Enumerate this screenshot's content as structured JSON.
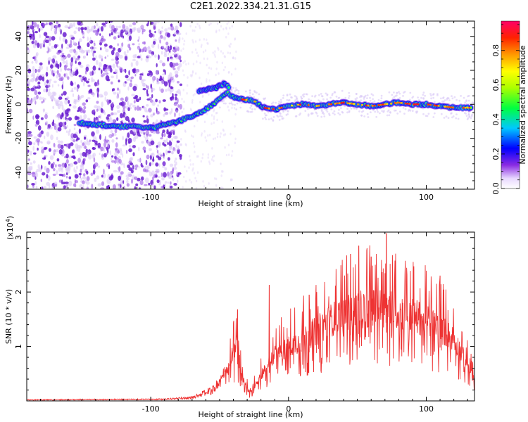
{
  "title": "C2E1.2022.334.21.31.G15",
  "chart_data": [
    {
      "type": "heatmap",
      "xlabel": "Height of straight line (km)",
      "ylabel": "Frequency (Hz)",
      "xlim": [
        -190,
        135
      ],
      "ylim": [
        -50,
        49
      ],
      "xticks": [
        -100,
        0,
        100
      ],
      "yticks": [
        -40,
        -20,
        0,
        20,
        40
      ],
      "colorbar": {
        "label": "Normalized spectral amplitude",
        "range": [
          0,
          0.97
        ],
        "ticks": [
          "0.0",
          "0.2",
          "0.4",
          "0.6",
          "0.8"
        ],
        "tick_values": [
          0,
          0.2,
          0.4,
          0.6,
          0.8
        ]
      },
      "ridge": [
        {
          "x": -152,
          "y": -11
        },
        {
          "x": -140,
          "y": -12
        },
        {
          "x": -125,
          "y": -13
        },
        {
          "x": -110,
          "y": -13
        },
        {
          "x": -98,
          "y": -14
        },
        {
          "x": -90,
          "y": -12
        },
        {
          "x": -80,
          "y": -10
        },
        {
          "x": -70,
          "y": -7
        },
        {
          "x": -60,
          "y": -3
        },
        {
          "x": -52,
          "y": 2
        },
        {
          "x": -45,
          "y": 7
        },
        {
          "x": -40,
          "y": 4
        },
        {
          "x": -35,
          "y": 3
        },
        {
          "x": -25,
          "y": 2
        },
        {
          "x": -18,
          "y": -2
        },
        {
          "x": -10,
          "y": -3
        },
        {
          "x": 0,
          "y": -1
        },
        {
          "x": 10,
          "y": 0
        },
        {
          "x": 20,
          "y": -1
        },
        {
          "x": 30,
          "y": 0
        },
        {
          "x": 40,
          "y": 1
        },
        {
          "x": 50,
          "y": 0
        },
        {
          "x": 60,
          "y": -1
        },
        {
          "x": 70,
          "y": 0
        },
        {
          "x": 80,
          "y": 1
        },
        {
          "x": 90,
          "y": 0
        },
        {
          "x": 100,
          "y": 0
        },
        {
          "x": 110,
          "y": -1
        },
        {
          "x": 120,
          "y": -2
        },
        {
          "x": 133,
          "y": -2
        }
      ],
      "branch": [
        {
          "x": -65,
          "y": 8
        },
        {
          "x": -58,
          "y": 9
        },
        {
          "x": -52,
          "y": 10
        },
        {
          "x": -47,
          "y": 12
        },
        {
          "x": -43,
          "y": 10
        }
      ],
      "noise_region_x": [
        -190,
        -78
      ]
    },
    {
      "type": "line",
      "xlabel": "Height of straight line (km)",
      "ylabel": "SNR (10 * v/v)",
      "multiplier_label": "(x10",
      "multiplier_exp": "4",
      "multiplier_close": ")",
      "xlim": [
        -190,
        135
      ],
      "ylim": [
        0,
        3.1
      ],
      "xticks": [
        -100,
        0,
        100
      ],
      "yticks": [
        1,
        2,
        3
      ],
      "color": "#ee3333",
      "envelope": [
        {
          "x": -190,
          "y": 0.02
        },
        {
          "x": -90,
          "y": 0.03
        },
        {
          "x": -70,
          "y": 0.06
        },
        {
          "x": -55,
          "y": 0.2
        },
        {
          "x": -45,
          "y": 0.5
        },
        {
          "x": -38,
          "y": 1.1
        },
        {
          "x": -33,
          "y": 0.4
        },
        {
          "x": -28,
          "y": 0.15
        },
        {
          "x": -20,
          "y": 0.5
        },
        {
          "x": -10,
          "y": 0.9
        },
        {
          "x": 0,
          "y": 1.05
        },
        {
          "x": 10,
          "y": 1.2
        },
        {
          "x": 20,
          "y": 1.35
        },
        {
          "x": 30,
          "y": 1.55
        },
        {
          "x": 40,
          "y": 1.7
        },
        {
          "x": 50,
          "y": 1.75
        },
        {
          "x": 60,
          "y": 1.8
        },
        {
          "x": 70,
          "y": 1.8
        },
        {
          "x": 80,
          "y": 1.75
        },
        {
          "x": 90,
          "y": 1.65
        },
        {
          "x": 100,
          "y": 1.55
        },
        {
          "x": 110,
          "y": 1.4
        },
        {
          "x": 120,
          "y": 1.2
        },
        {
          "x": 128,
          "y": 0.8
        },
        {
          "x": 135,
          "y": 0.4
        }
      ],
      "peaks": [
        {
          "x": -37,
          "y": 1.68
        },
        {
          "x": -14,
          "y": 2.13
        },
        {
          "x": 15,
          "y": 1.95
        },
        {
          "x": 45,
          "y": 2.7
        },
        {
          "x": 51,
          "y": 2.85
        },
        {
          "x": 60,
          "y": 2.65
        },
        {
          "x": 71,
          "y": 3.08
        },
        {
          "x": 110,
          "y": 2.3
        }
      ]
    }
  ]
}
